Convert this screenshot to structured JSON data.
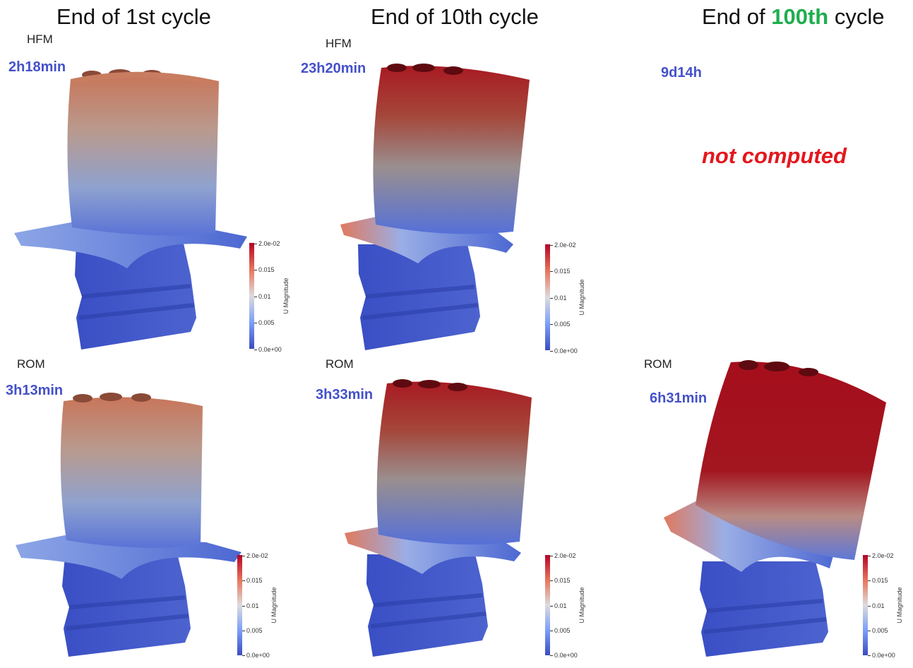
{
  "columns": [
    {
      "title_prefix": "End of ",
      "title_highlight": "",
      "title_suffix": "1st cycle"
    },
    {
      "title_prefix": "End of ",
      "title_highlight": "",
      "title_suffix": "10th cycle"
    },
    {
      "title_prefix": "End of ",
      "title_highlight": "100th",
      "title_suffix": " cycle"
    }
  ],
  "rows": {
    "hfm_label": "HFM",
    "rom_label": "ROM"
  },
  "times": {
    "hfm_1": "2h18min",
    "hfm_10": "23h20min",
    "hfm_100": "9d14h",
    "rom_1": "3h13min",
    "rom_10": "3h33min",
    "rom_100": "6h31min"
  },
  "not_computed": "not computed",
  "colorbar": {
    "title": "U Magnitude",
    "ticks": [
      "2.0e-02",
      "0.015",
      "0.01",
      "0.005",
      "0.0e+00"
    ]
  },
  "colors": {
    "highlight": "#1fae4e",
    "time": "#4451c9",
    "not_computed": "#e3171d"
  }
}
